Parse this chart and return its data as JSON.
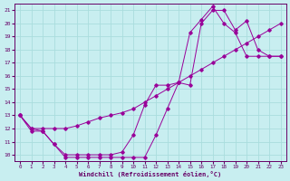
{
  "xlabel": "Windchill (Refroidissement éolien,°C)",
  "bg_color": "#c8eef0",
  "grid_color": "#aadddd",
  "line_color": "#990099",
  "xlim": [
    -0.5,
    23.5
  ],
  "ylim": [
    9.5,
    21.5
  ],
  "xticks": [
    0,
    1,
    2,
    3,
    4,
    5,
    6,
    7,
    8,
    9,
    10,
    11,
    12,
    13,
    14,
    15,
    16,
    17,
    18,
    19,
    20,
    21,
    22,
    23
  ],
  "yticks": [
    10,
    11,
    12,
    13,
    14,
    15,
    16,
    17,
    18,
    19,
    20,
    21
  ],
  "line1_x": [
    0,
    1,
    2,
    3,
    4,
    5,
    6,
    7,
    8,
    9,
    10,
    11,
    12,
    13,
    14,
    15,
    16,
    17,
    18,
    19,
    20,
    21,
    22,
    23
  ],
  "line1_y": [
    13.0,
    12.0,
    11.8,
    10.8,
    10.0,
    10.0,
    10.0,
    10.0,
    10.0,
    10.2,
    11.5,
    13.8,
    15.3,
    15.3,
    15.5,
    19.3,
    20.3,
    21.3,
    20.0,
    19.3,
    17.5,
    17.5,
    17.5,
    17.5
  ],
  "line2_x": [
    0,
    1,
    2,
    3,
    4,
    5,
    6,
    7,
    8,
    9,
    10,
    11,
    12,
    13,
    14,
    15,
    16,
    17,
    18,
    19,
    20,
    21,
    22,
    23
  ],
  "line2_y": [
    13.0,
    11.8,
    11.8,
    10.8,
    9.8,
    9.8,
    9.8,
    9.8,
    9.8,
    9.8,
    9.8,
    9.8,
    11.5,
    13.5,
    15.5,
    15.3,
    20.0,
    21.0,
    21.0,
    19.5,
    20.2,
    18.0,
    17.5,
    17.5
  ],
  "line3_x": [
    0,
    1,
    2,
    3,
    4,
    5,
    6,
    7,
    8,
    9,
    10,
    11,
    12,
    13,
    14,
    15,
    16,
    17,
    18,
    19,
    20,
    21,
    22,
    23
  ],
  "line3_y": [
    13.0,
    12.0,
    12.0,
    12.0,
    12.0,
    12.2,
    12.5,
    12.8,
    13.0,
    13.2,
    13.5,
    14.0,
    14.5,
    15.0,
    15.5,
    16.0,
    16.5,
    17.0,
    17.5,
    18.0,
    18.5,
    19.0,
    19.5,
    20.0
  ]
}
